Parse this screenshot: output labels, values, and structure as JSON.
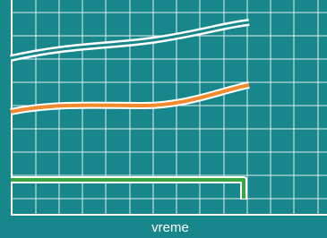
{
  "axis_label": "vreme"
}
